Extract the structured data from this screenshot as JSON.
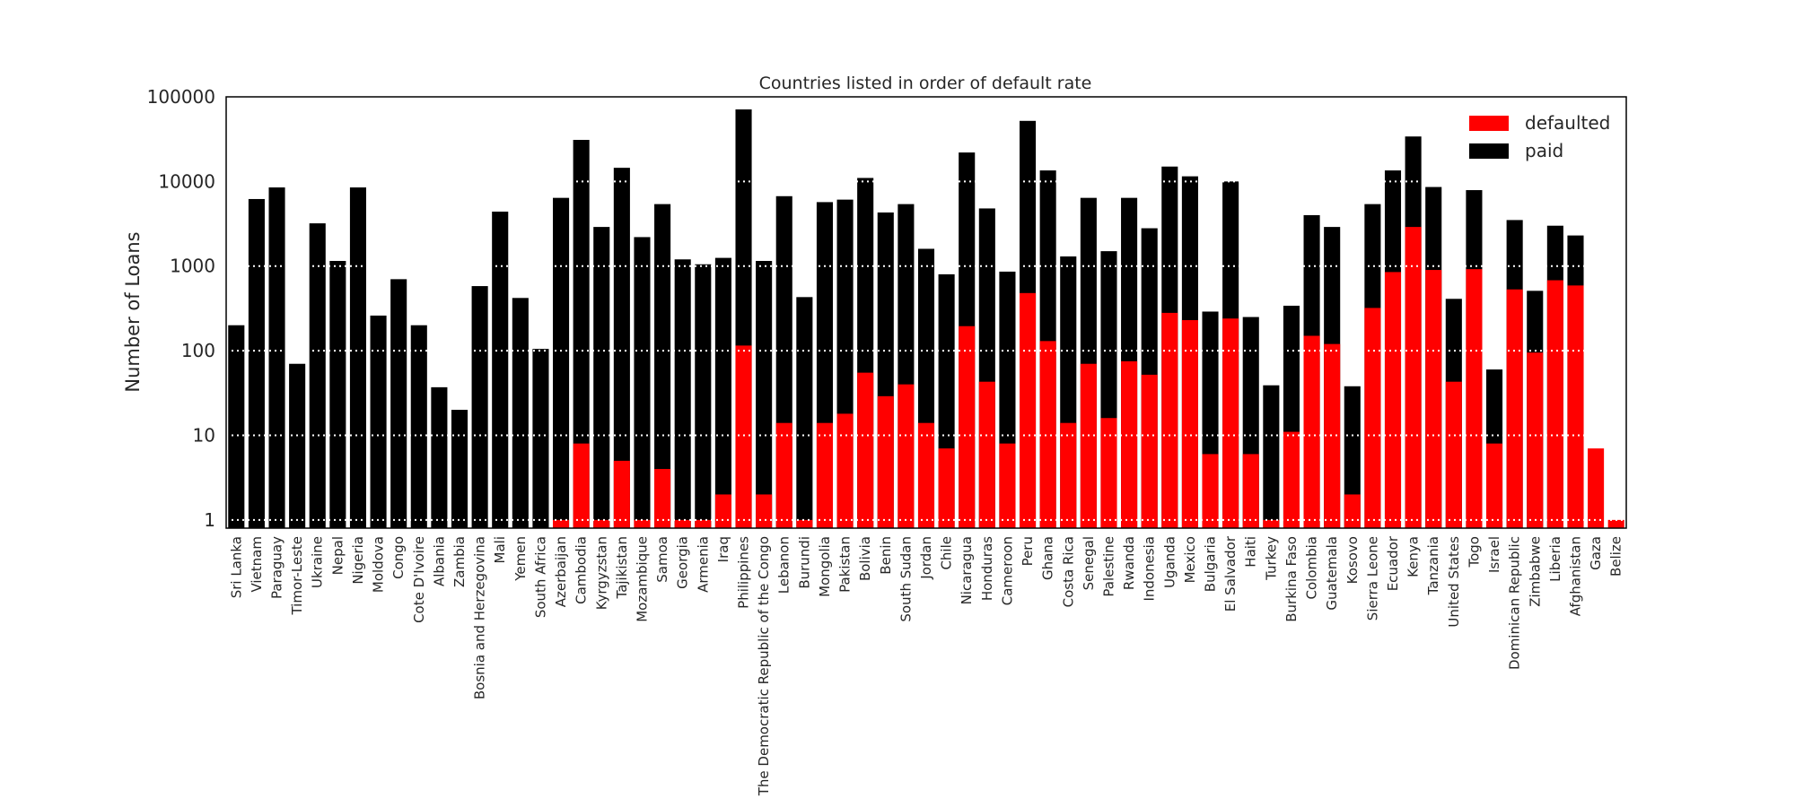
{
  "chart_data": {
    "type": "bar",
    "stacked": "overlay",
    "title": "Countries listed in order of default rate",
    "xlabel": "",
    "ylabel": "Number of Loans",
    "yscale": "log",
    "ylim": [
      0.8,
      100000
    ],
    "yticks": [
      "1",
      "10",
      "100",
      "1000",
      "10000",
      "100000"
    ],
    "grid": "horizontal dotted white",
    "legend_position": "top-right",
    "categories": [
      "Sri Lanka",
      "Vietnam",
      "Paraguay",
      "Timor-Leste",
      "Ukraine",
      "Nepal",
      "Nigeria",
      "Moldova",
      "Congo",
      "Cote D'Ivoire",
      "Albania",
      "Zambia",
      "Bosnia and Herzegovina",
      "Mali",
      "Yemen",
      "South Africa",
      "Azerbaijan",
      "Cambodia",
      "Kyrgyzstan",
      "Tajikistan",
      "Mozambique",
      "Samoa",
      "Georgia",
      "Armenia",
      "Iraq",
      "Philippines",
      "The Democratic Republic of the Congo",
      "Lebanon",
      "Burundi",
      "Mongolia",
      "Pakistan",
      "Bolivia",
      "Benin",
      "South Sudan",
      "Jordan",
      "Chile",
      "Nicaragua",
      "Honduras",
      "Cameroon",
      "Peru",
      "Ghana",
      "Costa Rica",
      "Senegal",
      "Palestine",
      "Rwanda",
      "Indonesia",
      "Uganda",
      "Mexico",
      "Bulgaria",
      "El Salvador",
      "Haiti",
      "Turkey",
      "Burkina Faso",
      "Colombia",
      "Guatemala",
      "Kosovo",
      "Sierra Leone",
      "Ecuador",
      "Kenya",
      "Tanzania",
      "United States",
      "Togo",
      "Israel",
      "Dominican Republic",
      "Zimbabwe",
      "Liberia",
      "Afghanistan",
      "Gaza",
      "Belize"
    ],
    "series": [
      {
        "name": "paid",
        "color": "#000000",
        "values": [
          200,
          6200,
          8500,
          70,
          3200,
          1150,
          8500,
          260,
          700,
          200,
          37,
          20,
          580,
          4400,
          420,
          105,
          6400,
          31000,
          2900,
          14500,
          2200,
          5400,
          1200,
          1050,
          1250,
          71000,
          1150,
          6700,
          430,
          5700,
          6100,
          11000,
          4300,
          5400,
          1600,
          800,
          22000,
          4800,
          860,
          52000,
          13500,
          1300,
          6400,
          1500,
          6400,
          2800,
          15000,
          11500,
          290,
          10000,
          250,
          39,
          340,
          4000,
          2900,
          38,
          5400,
          13500,
          34000,
          8600,
          410,
          7900,
          60,
          3500,
          510,
          3000,
          2300,
          0,
          0
        ]
      },
      {
        "name": "defaulted",
        "color": "#ff0000",
        "values": [
          0,
          0,
          0,
          0,
          0,
          0,
          0,
          0,
          0,
          0,
          0,
          0,
          0,
          0,
          0,
          0,
          1,
          8,
          1,
          5,
          1,
          4,
          1,
          1,
          2,
          115,
          2,
          14,
          1,
          14,
          18,
          55,
          29,
          40,
          14,
          7,
          195,
          43,
          8,
          480,
          130,
          14,
          70,
          16,
          75,
          52,
          280,
          230,
          6,
          240,
          6,
          1,
          11,
          150,
          120,
          2,
          320,
          850,
          2900,
          900,
          43,
          920,
          8,
          530,
          95,
          680,
          590,
          7,
          1
        ]
      }
    ]
  }
}
